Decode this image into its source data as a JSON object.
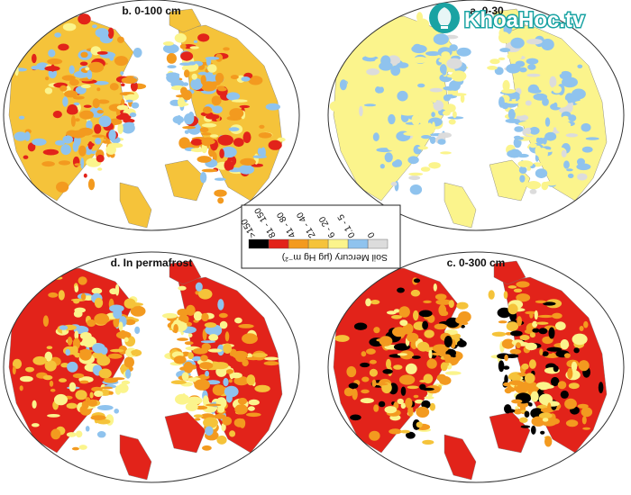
{
  "panels": [
    {
      "id": "b",
      "label": "b. 0-100 cm"
    },
    {
      "id": "a",
      "label": "a. 0-30"
    },
    {
      "id": "d",
      "label": "d. In permafrost"
    },
    {
      "id": "c",
      "label": "c. 0-300 cm"
    }
  ],
  "legend": {
    "title": "Soil Mercury (μg Hg m⁻²)",
    "classes": [
      {
        "label": "0",
        "color": "#dcdcdc"
      },
      {
        "label": "0.1 - 5",
        "color": "#8fc3ee"
      },
      {
        "label": "6 - 20",
        "color": "#fbf48c"
      },
      {
        "label": "21 - 40",
        "color": "#f5c33a"
      },
      {
        "label": "41 - 80",
        "color": "#f39a1f"
      },
      {
        "label": "81 - 150",
        "color": "#e2231a"
      },
      {
        "label": ">150",
        "color": "#000000"
      }
    ]
  },
  "watermark": {
    "text": "KhoaHoc.tv",
    "brand_color": "#1aa3a3"
  }
}
